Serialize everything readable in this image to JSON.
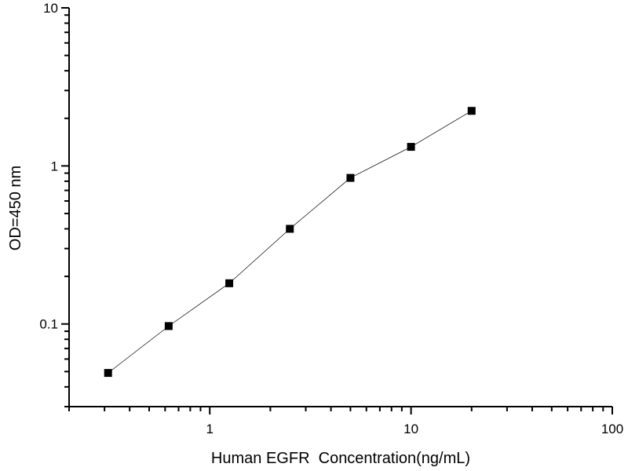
{
  "chart_data": {
    "type": "line",
    "title": "",
    "xlabel": "Human EGFR  Concentration(ng/mL)",
    "ylabel": "OD=450 nm",
    "xscale": "log",
    "yscale": "log",
    "xlim": [
      0.2,
      100
    ],
    "ylim": [
      0.03,
      10
    ],
    "xticks": [
      {
        "v": 1,
        "label": "1"
      },
      {
        "v": 10,
        "label": "10"
      },
      {
        "v": 100,
        "label": "100"
      }
    ],
    "yticks": [
      {
        "v": 0.1,
        "label": "0.1"
      },
      {
        "v": 1,
        "label": "1"
      },
      {
        "v": 10,
        "label": "10"
      }
    ],
    "grid": false,
    "marker": "square",
    "color": "#000000",
    "x": [
      0.3125,
      0.625,
      1.25,
      2.5,
      5,
      10,
      20
    ],
    "y": [
      0.049,
      0.097,
      0.181,
      0.4,
      0.84,
      1.32,
      2.23
    ]
  }
}
